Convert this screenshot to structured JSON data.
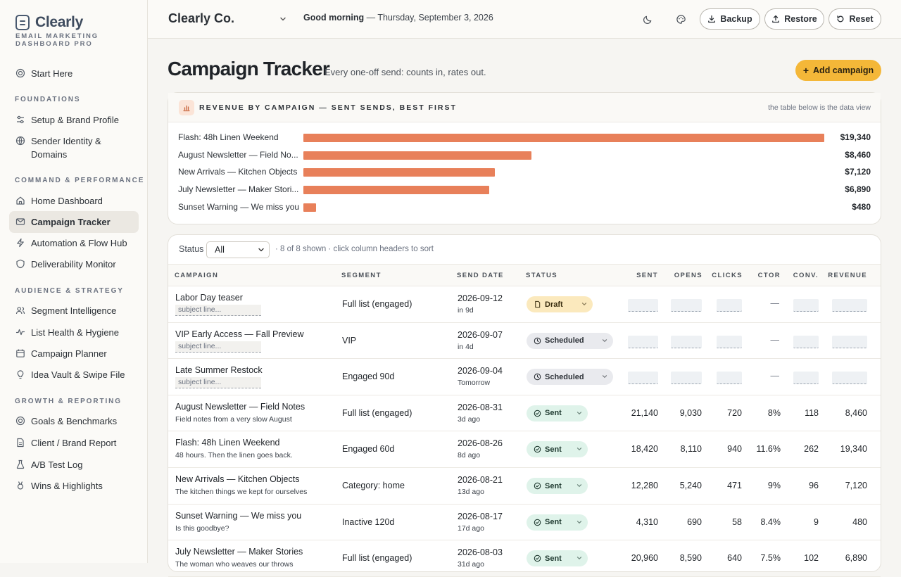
{
  "brand": {
    "name": "Clearly",
    "subtitle": "Email Marketing Dashboard Pro"
  },
  "sidebar": {
    "start": {
      "label": "Start Here",
      "icon": "target-icon"
    },
    "sections": [
      {
        "title": "Foundations",
        "items": [
          {
            "label": "Setup & Brand Profile",
            "icon": "sliders-icon"
          },
          {
            "label": "Sender Identity & Domains",
            "icon": "globe-icon"
          }
        ]
      },
      {
        "title": "Command & Performance",
        "items": [
          {
            "label": "Home Dashboard",
            "icon": "home-icon"
          },
          {
            "label": "Campaign Tracker",
            "icon": "mail-icon",
            "active": true
          },
          {
            "label": "Automation & Flow Hub",
            "icon": "zap-icon"
          },
          {
            "label": "Deliverability Monitor",
            "icon": "shield-icon"
          }
        ]
      },
      {
        "title": "Audience & Strategy",
        "items": [
          {
            "label": "Segment Intelligence",
            "icon": "users-icon"
          },
          {
            "label": "List Health & Hygiene",
            "icon": "pulse-icon"
          },
          {
            "label": "Campaign Planner",
            "icon": "calendar-icon"
          },
          {
            "label": "Idea Vault & Swipe File",
            "icon": "lightbulb-icon"
          }
        ]
      },
      {
        "title": "Growth & Reporting",
        "items": [
          {
            "label": "Goals & Benchmarks",
            "icon": "target-icon"
          },
          {
            "label": "Client / Brand Report",
            "icon": "document-icon"
          },
          {
            "label": "A/B Test Log",
            "icon": "flask-icon"
          },
          {
            "label": "Wins & Highlights",
            "icon": "medal-icon"
          }
        ]
      }
    ]
  },
  "topbar": {
    "company": "Clearly Co.",
    "greeting_bold": "Good morning",
    "greeting_rest": " — Thursday, September 3, 2026",
    "backup_label": "Backup",
    "restore_label": "Restore",
    "reset_label": "Reset"
  },
  "page": {
    "title": "Campaign Tracker",
    "subtitle": "Every one-off send: counts in, rates out.",
    "add_label": "Add campaign"
  },
  "chart": {
    "title": "Revenue by campaign — sent sends, best first",
    "note": "the table below is the data view"
  },
  "chart_data": {
    "type": "bar",
    "orientation": "horizontal",
    "title": "Revenue by campaign — sent sends, best first",
    "categories": [
      "Flash: 48h Linen Weekend",
      "August Newsletter — Field No...",
      "New Arrivals — Kitchen Objects",
      "July Newsletter — Maker Stori...",
      "Sunset Warning — We miss you"
    ],
    "values": [
      19340,
      8460,
      7120,
      6890,
      480
    ],
    "value_labels": [
      "$19,340",
      "$8,460",
      "$7,120",
      "$6,890",
      "$480"
    ],
    "xlim": [
      0,
      19340
    ],
    "color": "#e8805a"
  },
  "table": {
    "filter_label": "Status",
    "filter_value": "All",
    "info": "· 8 of 8 shown · click column headers to sort",
    "columns": [
      "Campaign",
      "Segment",
      "Send date",
      "Status",
      "Sent",
      "Opens",
      "Clicks",
      "CTOR",
      "Conv.",
      "Revenue"
    ],
    "rows": [
      {
        "name": "Labor Day teaser",
        "subject": "subject line...",
        "subject_input": true,
        "segment": "Full list (engaged)",
        "date": "2026-09-12",
        "rel": "in 9d",
        "status": "Draft",
        "kind": "draft"
      },
      {
        "name": "VIP Early Access — Fall Preview",
        "subject": "subject line...",
        "subject_input": true,
        "segment": "VIP",
        "date": "2026-09-07",
        "rel": "in 4d",
        "status": "Scheduled",
        "kind": "scheduled"
      },
      {
        "name": "Late Summer Restock",
        "subject": "subject line...",
        "subject_input": true,
        "segment": "Engaged 90d",
        "date": "2026-09-04",
        "rel": "Tomorrow",
        "status": "Scheduled",
        "kind": "scheduled"
      },
      {
        "name": "August Newsletter — Field Notes",
        "subject": "Field notes from a very slow August",
        "segment": "Full list (engaged)",
        "date": "2026-08-31",
        "rel": "3d ago",
        "status": "Sent",
        "kind": "sent",
        "sent": "21,140",
        "opens": "9,030",
        "clicks": "720",
        "ctor": "8%",
        "conv": "118",
        "revenue": "8,460"
      },
      {
        "name": "Flash: 48h Linen Weekend",
        "subject": "48 hours. Then the linen goes back.",
        "segment": "Engaged 60d",
        "date": "2026-08-26",
        "rel": "8d ago",
        "status": "Sent",
        "kind": "sent",
        "sent": "18,420",
        "opens": "8,110",
        "clicks": "940",
        "ctor": "11.6%",
        "conv": "262",
        "revenue": "19,340"
      },
      {
        "name": "New Arrivals — Kitchen Objects",
        "subject": "The kitchen things we kept for ourselves",
        "segment": "Category: home",
        "date": "2026-08-21",
        "rel": "13d ago",
        "status": "Sent",
        "kind": "sent",
        "sent": "12,280",
        "opens": "5,240",
        "clicks": "471",
        "ctor": "9%",
        "conv": "96",
        "revenue": "7,120"
      },
      {
        "name": "Sunset Warning — We miss you",
        "subject": "Is this goodbye?",
        "segment": "Inactive 120d",
        "date": "2026-08-17",
        "rel": "17d ago",
        "status": "Sent",
        "kind": "sent",
        "sent": "4,310",
        "opens": "690",
        "clicks": "58",
        "ctor": "8.4%",
        "conv": "9",
        "revenue": "480"
      },
      {
        "name": "July Newsletter — Maker Stories",
        "subject": "The woman who weaves our throws",
        "segment": "Full list (engaged)",
        "date": "2026-08-03",
        "rel": "31d ago",
        "status": "Sent",
        "kind": "sent",
        "sent": "20,960",
        "opens": "8,590",
        "clicks": "640",
        "ctor": "7.5%",
        "conv": "102",
        "revenue": "6,890"
      }
    ]
  }
}
